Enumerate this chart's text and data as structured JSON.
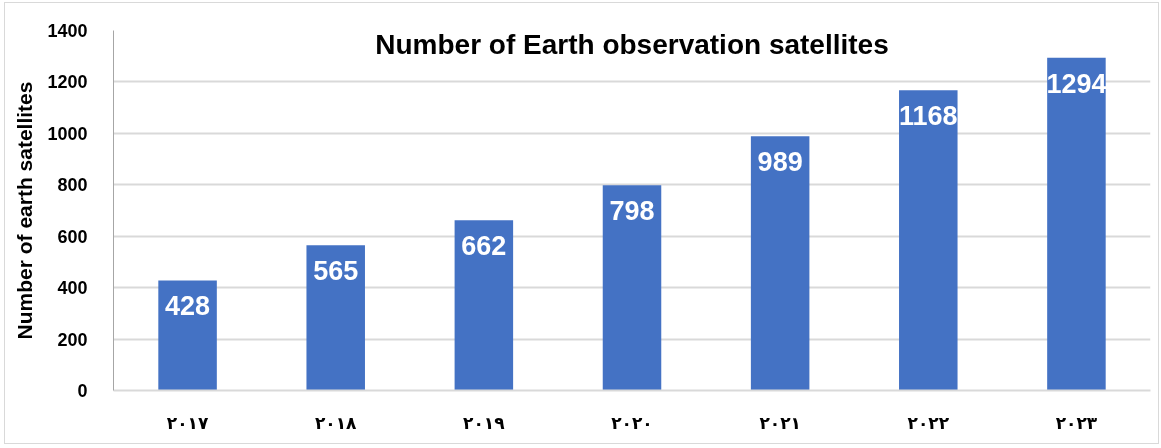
{
  "chart_data": {
    "type": "bar",
    "title": "Number of Earth observation satellites",
    "ylabel": "Number of earth satellites",
    "categories": [
      "٢٠١٧",
      "٢٠١٨",
      "٢٠١٩",
      "٢٠٢٠",
      "٢٠٢١",
      "٢٠٢٢",
      "٢٠٢٣"
    ],
    "values": [
      428,
      565,
      662,
      798,
      989,
      1168,
      1294
    ],
    "color": "#4472c4",
    "ylim": [
      0,
      1400
    ],
    "yticks": [
      0,
      200,
      400,
      600,
      800,
      1000,
      1200,
      1400
    ],
    "grid": "y",
    "data_labels": true
  }
}
